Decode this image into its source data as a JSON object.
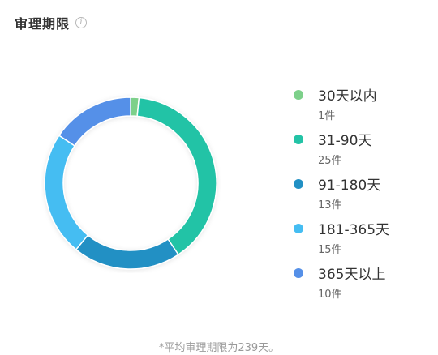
{
  "header": {
    "title": "审理期限",
    "info_icon": "info-circle-icon"
  },
  "chart_data": {
    "type": "pie",
    "variant": "donut",
    "title": "审理期限",
    "legend_placement": "right",
    "slices": [
      {
        "label": "30天以内",
        "value": 1,
        "count_text": "1件",
        "color": "#7dd08a"
      },
      {
        "label": "31-90天",
        "value": 25,
        "count_text": "25件",
        "color": "#23c3a6"
      },
      {
        "label": "91-180天",
        "value": 13,
        "count_text": "13件",
        "color": "#2190c4"
      },
      {
        "label": "181-365天",
        "value": 15,
        "count_text": "15件",
        "color": "#45bdf2"
      },
      {
        "label": "365天以上",
        "value": 10,
        "count_text": "10件",
        "color": "#5590e8"
      }
    ]
  },
  "footnote": "*平均审理期限为239天。"
}
